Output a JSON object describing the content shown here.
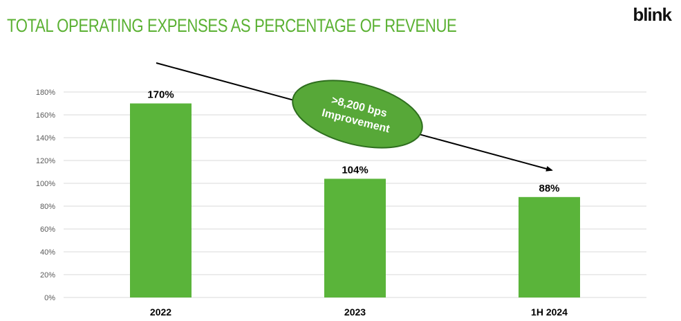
{
  "header": {
    "title": "TOTAL OPERATING EXPENSES AS PERCENTAGE OF REVENUE",
    "logo_text": "blink"
  },
  "colors": {
    "title": "#5BB133",
    "bar": "#5AB43A",
    "callout_fill": "#57A838",
    "callout_stroke": "#2E6E1E",
    "grid": "#D9D9D9",
    "arrow": "#000000"
  },
  "chart_data": {
    "type": "bar",
    "title": "TOTAL OPERATING EXPENSES AS PERCENTAGE OF REVENUE",
    "categories": [
      "2022",
      "2023",
      "1H 2024"
    ],
    "values": [
      170,
      104,
      88
    ],
    "value_labels": [
      "170%",
      "104%",
      "88%"
    ],
    "ylim": [
      0,
      180
    ],
    "ytick_values": [
      0,
      20,
      40,
      60,
      80,
      100,
      120,
      140,
      160,
      180
    ],
    "ytick_labels": [
      "0%",
      "20%",
      "40%",
      "60%",
      "80%",
      "100%",
      "120%",
      "140%",
      "160%",
      "180%"
    ],
    "grid": true,
    "xlabel": "",
    "ylabel": "",
    "annotation": {
      "line1": ">8,200 bps",
      "line2": "Improvement",
      "arrow": "downward trend arrow from 2022 to 1H 2024"
    }
  }
}
